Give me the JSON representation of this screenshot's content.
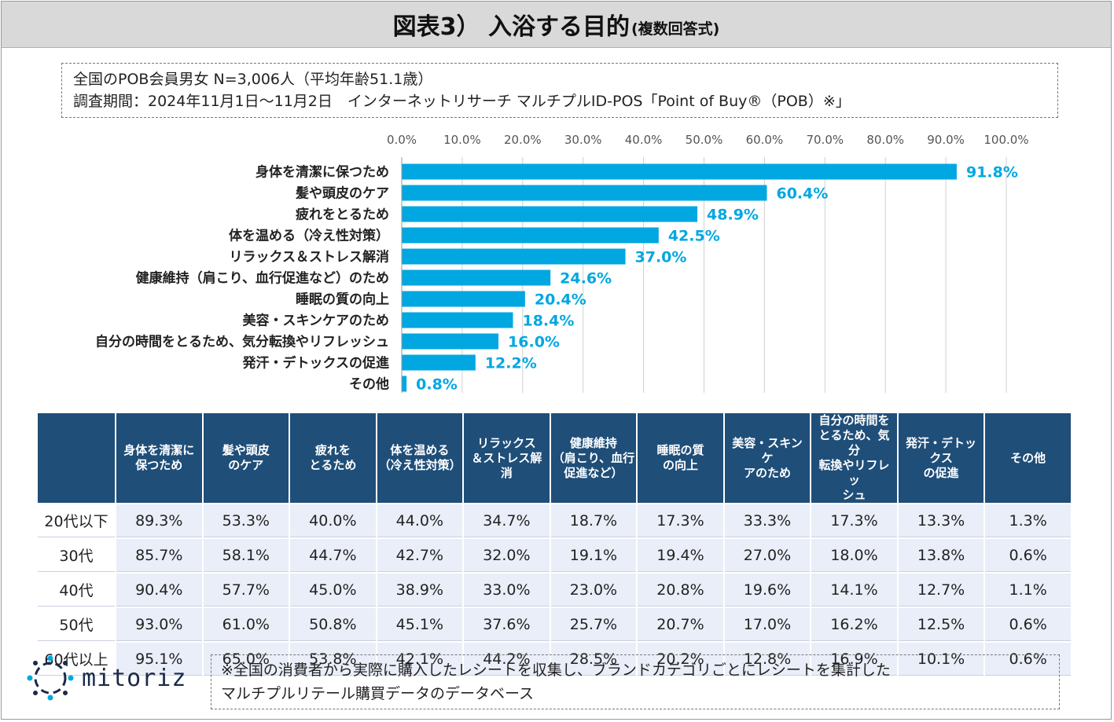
{
  "title": {
    "main": "図表3） 入浴する目的",
    "sub": "(複数回答式)"
  },
  "info": {
    "line1": "全国のPOB会員男女 N=3,006人（平均年齢51.1歳）",
    "line2": "調査期間：2024年11月1日～11月2日　インターネットリサーチ マルチプルID-POS「Point of Buy®（POB）※」"
  },
  "colors": {
    "bar": "#00a7e1",
    "header": "#1f4e79",
    "cell": "#eaeef8"
  },
  "chart_data": {
    "type": "bar",
    "orientation": "horizontal",
    "title": "",
    "xlim": [
      0,
      100
    ],
    "xticks": [
      "0.0%",
      "10.0%",
      "20.0%",
      "30.0%",
      "40.0%",
      "50.0%",
      "60.0%",
      "70.0%",
      "80.0%",
      "90.0%",
      "100.0%"
    ],
    "categories": [
      "身体を清潔に保つため",
      "髪や頭皮のケア",
      "疲れをとるため",
      "体を温める（冷え性対策）",
      "リラックス＆ストレス解消",
      "健康維持（肩こり、血行促進など）のため",
      "睡眠の質の向上",
      "美容・スキンケアのため",
      "自分の時間をとるため、気分転換やリフレッシュ",
      "発汗・デトックスの促進",
      "その他"
    ],
    "values": [
      91.8,
      60.4,
      48.9,
      42.5,
      37.0,
      24.6,
      20.4,
      18.4,
      16.0,
      12.2,
      0.8
    ],
    "labels": [
      "91.8%",
      "60.4%",
      "48.9%",
      "42.5%",
      "37.0%",
      "24.6%",
      "20.4%",
      "18.4%",
      "16.0%",
      "12.2%",
      "0.8%"
    ]
  },
  "table": {
    "headers": [
      "身体を清潔に\n保つため",
      "髪や頭皮\nのケア",
      "疲れを\nとるため",
      "体を温める\n（冷え性対策）",
      "リラックス\n＆ストレス解消",
      "健康維持\n（肩こり、血行\n促進など）",
      "睡眠の質\nの向上",
      "美容・スキンケ\nアのため",
      "自分の時間を\nとるため、気分\n転換やリフレッ\nシュ",
      "発汗・デトックス\nの促進",
      "その他"
    ],
    "rows": [
      {
        "label": "20代以下",
        "values": [
          "89.3%",
          "53.3%",
          "40.0%",
          "44.0%",
          "34.7%",
          "18.7%",
          "17.3%",
          "33.3%",
          "17.3%",
          "13.3%",
          "1.3%"
        ]
      },
      {
        "label": "30代",
        "values": [
          "85.7%",
          "58.1%",
          "44.7%",
          "42.7%",
          "32.0%",
          "19.1%",
          "19.4%",
          "27.0%",
          "18.0%",
          "13.8%",
          "0.6%"
        ]
      },
      {
        "label": "40代",
        "values": [
          "90.4%",
          "57.7%",
          "45.0%",
          "38.9%",
          "33.0%",
          "23.0%",
          "20.8%",
          "19.6%",
          "14.1%",
          "12.7%",
          "1.1%"
        ]
      },
      {
        "label": "50代",
        "values": [
          "93.0%",
          "61.0%",
          "50.8%",
          "45.1%",
          "37.6%",
          "25.7%",
          "20.7%",
          "17.0%",
          "16.2%",
          "12.5%",
          "0.6%"
        ]
      },
      {
        "label": "60代以上",
        "values": [
          "95.1%",
          "65.0%",
          "53.8%",
          "42.1%",
          "44.2%",
          "28.5%",
          "20.2%",
          "12.8%",
          "16.9%",
          "10.1%",
          "0.6%"
        ]
      }
    ]
  },
  "logo": {
    "text": "mitoriz",
    "icon": "sun-icon"
  },
  "note": {
    "line1": "※全国の消費者から実際に購入したレシートを収集し、ブランドカテゴリごとにレシートを集計した",
    "line2": "マルチプルリテール購買データのデータベース"
  }
}
